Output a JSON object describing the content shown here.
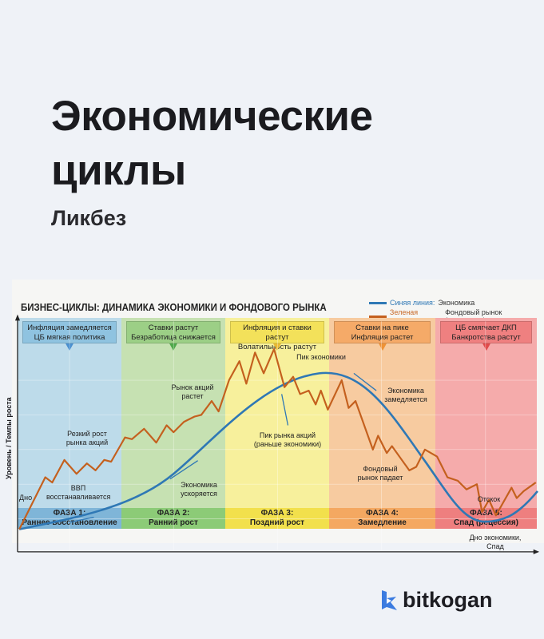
{
  "header": {
    "title": "Экономические циклы",
    "subtitle": "Ликбез"
  },
  "diagram": {
    "title": "БИЗНЕС-ЦИКЛЫ: ДИНАМИКА ЭКОНОМИКИ И ФОНДОВОГО РЫНКА",
    "legend": [
      {
        "prefix": "Синяя линия:",
        "label": "Экономика",
        "color": "#2f78b5"
      },
      {
        "prefix": "Зеленая линия:",
        "label": "Фондовый рынок (опережает)",
        "color": "#c4601e"
      }
    ],
    "y_axis_label": "Уровень / Темпы роста",
    "phases": [
      {
        "top1": "Инфляция замедляется",
        "top2": "ЦБ мягкая политика",
        "name": "ФАЗА 1:",
        "desc": "Раннее восстановление",
        "bg": "#bddbea",
        "box": "#8fc3e0",
        "bar": "#7fb5d8",
        "arrow": "#4a8fcf"
      },
      {
        "top1": "Ставки растут",
        "top2": "Безработица снижается",
        "name": "ФАЗА 2:",
        "desc": "Ранний рост",
        "bg": "#c6e1b2",
        "box": "#9ccf86",
        "bar": "#8ccb77",
        "arrow": "#4ea84a"
      },
      {
        "top1": "Инфляция и ставки растут",
        "top2": "Волатильность растут",
        "name": "ФАЗА 3:",
        "desc": "Поздний рост",
        "bg": "#f7f09c",
        "box": "#f3e15a",
        "bar": "#f2e04c",
        "arrow": "#e9b932"
      },
      {
        "top1": "Ставки на пике",
        "top2": "Инфляция растет",
        "name": "ФАЗА 4:",
        "desc": "Замедление",
        "bg": "#f7cba0",
        "box": "#f5aa68",
        "bar": "#f4a861",
        "arrow": "#ee9236"
      },
      {
        "top1": "ЦБ смягчает ДКП",
        "top2": "Банкротства растут",
        "name": "ФАЗА 5:",
        "desc": "Спад (рецессия)",
        "bg": "#f5abab",
        "box": "#ef8080",
        "bar": "#ee7f7f",
        "arrow": "#e04a4a"
      }
    ],
    "annotations": {
      "bottom": "Дно",
      "gdp": "ВВП восстанавливается",
      "sharp": "Резкий рост рынка акций",
      "econ_acc": "Экономика ускоряется",
      "stock_up": "Рынок акций растет",
      "econ_peak": "Пик экономики",
      "stock_peak": "Пик рынка акций (раньше экономики)",
      "econ_slow": "Экономика замедляется",
      "stock_fall": "Фондовый рынок падает",
      "rebound": "Отскок",
      "econ_bottom": "Дно экономики, Спад"
    }
  },
  "brand": {
    "name": "bitkogan",
    "color": "#3b7be0"
  }
}
